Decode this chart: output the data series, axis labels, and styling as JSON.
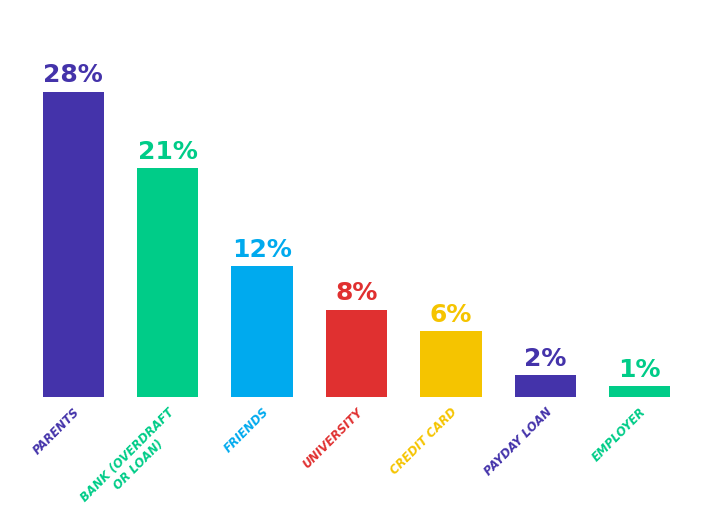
{
  "categories": [
    "PARENTS",
    "BANK (OVERDRAFT\nOR LOAN)",
    "FRIENDS",
    "UNIVERSITY",
    "CREDIT CARD",
    "PAYDAY LOAN",
    "EMPLOYER"
  ],
  "values": [
    28,
    21,
    12,
    8,
    6,
    2,
    1
  ],
  "bar_colors": [
    "#4433aa",
    "#00cc88",
    "#00aaee",
    "#e03030",
    "#f5c400",
    "#4433aa",
    "#00cc88"
  ],
  "label_colors": [
    "#4433aa",
    "#00cc88",
    "#00aaee",
    "#e03030",
    "#f5c400",
    "#4433aa",
    "#00cc88"
  ],
  "tick_colors": [
    "#4433aa",
    "#00cc88",
    "#00aaee",
    "#e03030",
    "#f5c400",
    "#4433aa",
    "#00cc88"
  ],
  "labels": [
    "28%",
    "21%",
    "12%",
    "8%",
    "6%",
    "2%",
    "1%"
  ],
  "background_color": "#ffffff",
  "ylim": [
    0,
    34
  ],
  "bar_width": 0.65,
  "label_fontsize": 18,
  "tick_fontsize": 8.5
}
